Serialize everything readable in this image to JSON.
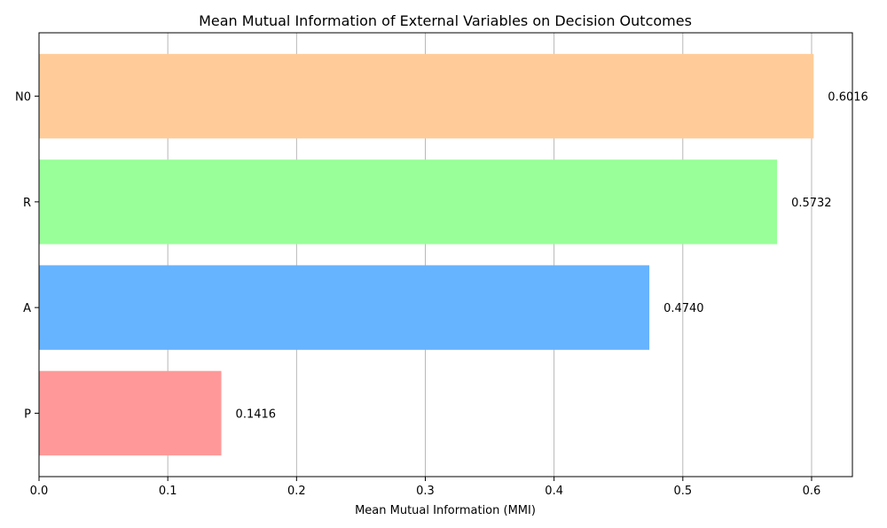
{
  "chart_data": {
    "type": "bar",
    "orientation": "horizontal",
    "title": "Mean Mutual Information of External Variables on Decision Outcomes",
    "xlabel": "Mean Mutual Information (MMI)",
    "ylabel": "",
    "xlim": [
      0,
      0.6317
    ],
    "xticks": [
      0.0,
      0.1,
      0.2,
      0.3,
      0.4,
      0.5,
      0.6
    ],
    "xtick_labels": [
      "0.0",
      "0.1",
      "0.2",
      "0.3",
      "0.4",
      "0.5",
      "0.6"
    ],
    "grid": "x-axis vertical lines",
    "categories": [
      "P",
      "A",
      "R",
      "N0"
    ],
    "values": [
      0.1416,
      0.474,
      0.5732,
      0.6016
    ],
    "value_labels": [
      "0.1416",
      "0.4740",
      "0.5732",
      "0.6016"
    ],
    "colors": [
      "#ff9999",
      "#66b3ff",
      "#99ff99",
      "#ffcc99"
    ]
  }
}
